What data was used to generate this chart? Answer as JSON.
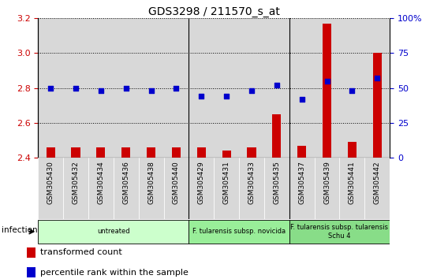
{
  "title": "GDS3298 / 211570_s_at",
  "samples": [
    "GSM305430",
    "GSM305432",
    "GSM305434",
    "GSM305436",
    "GSM305438",
    "GSM305440",
    "GSM305429",
    "GSM305431",
    "GSM305433",
    "GSM305435",
    "GSM305437",
    "GSM305439",
    "GSM305441",
    "GSM305442"
  ],
  "transformed_count": [
    2.46,
    2.46,
    2.46,
    2.46,
    2.46,
    2.46,
    2.46,
    2.44,
    2.46,
    2.65,
    2.47,
    3.17,
    2.49,
    3.0
  ],
  "percentile_rank": [
    50,
    50,
    48,
    50,
    48,
    50,
    44,
    44,
    48,
    52,
    42,
    55,
    48,
    57
  ],
  "ylim_left": [
    2.4,
    3.2
  ],
  "ylim_right": [
    0,
    100
  ],
  "yticks_left": [
    2.4,
    2.6,
    2.8,
    3.0,
    3.2
  ],
  "yticks_right": [
    0,
    25,
    50,
    75,
    100
  ],
  "bar_color": "#cc0000",
  "dot_color": "#0000cc",
  "groups": [
    {
      "label": "untreated",
      "start": 0,
      "end": 5,
      "color": "#ccffcc"
    },
    {
      "label": "F. tularensis subsp. novicida",
      "start": 6,
      "end": 9,
      "color": "#99ee99"
    },
    {
      "label": "F. tularensis subsp. tularensis\nSchu 4",
      "start": 10,
      "end": 13,
      "color": "#88dd88"
    }
  ],
  "infection_label": "infection",
  "legend": [
    {
      "color": "#cc0000",
      "label": "transformed count"
    },
    {
      "color": "#0000cc",
      "label": "percentile rank within the sample"
    }
  ],
  "bg_color": "#ffffff",
  "plot_bg": "#ffffff",
  "ylabel_left_color": "#cc0000",
  "ylabel_right_color": "#0000cc",
  "sample_bg": "#d8d8d8",
  "sep_color": "#888888"
}
